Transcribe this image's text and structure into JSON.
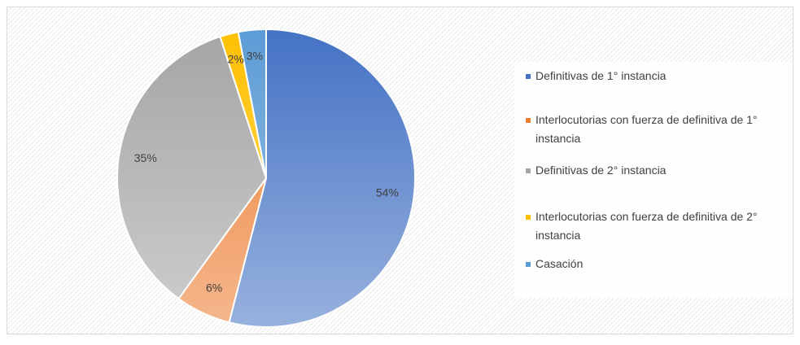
{
  "chart_data": {
    "type": "pie",
    "categories": [
      "Definitivas de 1° instancia",
      "Interlocutorias con fuerza de definitiva de 1° instancia",
      "Definitivas de 2° instancia",
      "Interlocutorias con fuerza de definitiva de 2° instancia",
      "Casación"
    ],
    "values": [
      54,
      6,
      35,
      2,
      3
    ],
    "value_labels": [
      "54%",
      "6%",
      "35%",
      "2%",
      "3%"
    ],
    "colors": [
      "#4472c4",
      "#ed7d31",
      "#a5a5a5",
      "#ffc000",
      "#5b9bd5"
    ],
    "legend": "right"
  }
}
